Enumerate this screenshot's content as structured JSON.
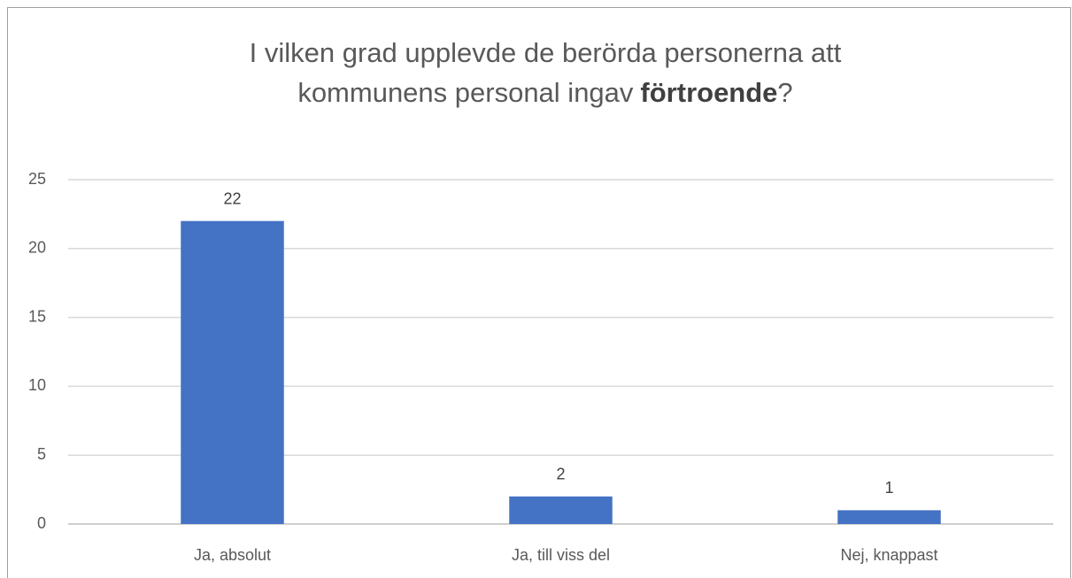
{
  "chart_data": {
    "type": "bar",
    "title_lines": [
      [
        {
          "text": "I vilken grad upplevde de berörda personerna att"
        }
      ],
      [
        {
          "text": "kommunens personal ingav"
        },
        {
          "text": "förtroende",
          "bold": true
        },
        {
          "text": "?"
        }
      ]
    ],
    "categories": [
      "Ja, absolut",
      "Ja, till viss del",
      "Nej, knappast"
    ],
    "values": [
      22,
      2,
      1
    ],
    "color": "#4472c4",
    "ylim": [
      0,
      25
    ],
    "yticks": [
      0,
      5,
      10,
      15,
      20,
      25
    ],
    "grid": true
  }
}
